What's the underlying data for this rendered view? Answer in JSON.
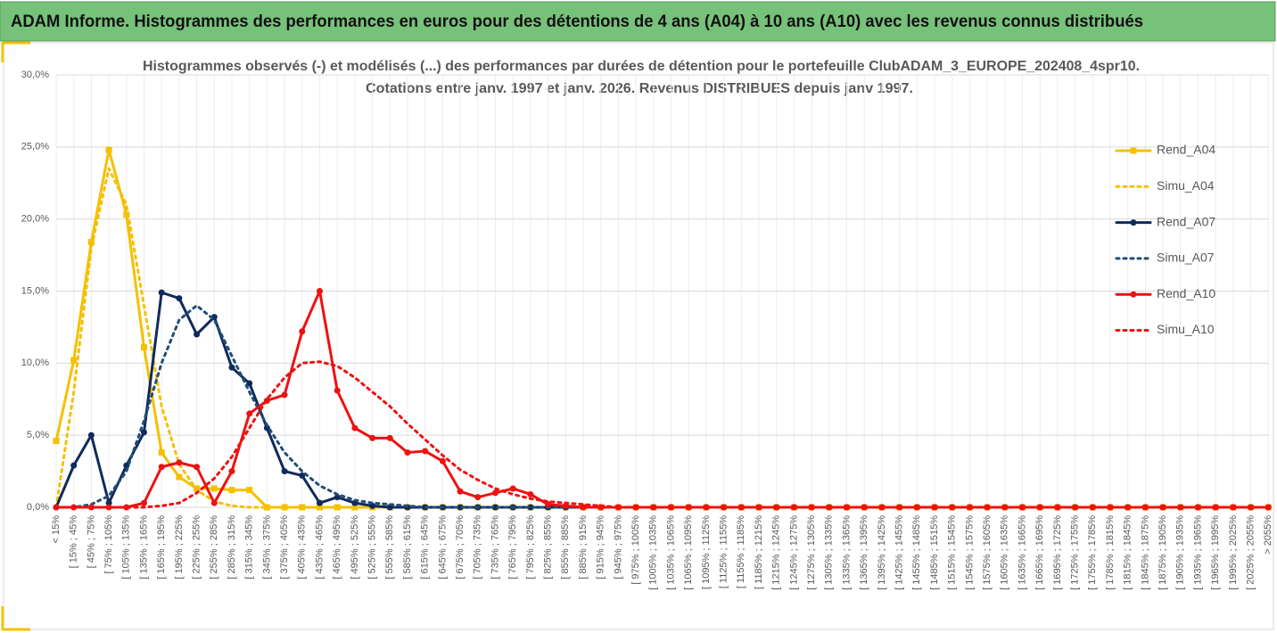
{
  "header": {
    "title": "ADAM Informe. Histogrammes des performances en euros pour des détentions de 4 ans (A04) à 10 ans (A10) avec les revenus connus distribués"
  },
  "chart_data": {
    "type": "line",
    "title": "Histogrammes observés (-) et modélisés (...) des performances par durées de détention pour le portefeuille ClubADAM_3_EUROPE_202408_4spr10.",
    "subtitle": "Cotations entre janv. 1997 et janv. 2026. Revenus DISTRIBUES depuis janv 1997.",
    "categories": [
      "< 15%",
      "[ 15% ; 45%",
      "[ 45% ; 75%",
      "[ 75% ; 105%",
      "[ 105% ; 135%",
      "[ 135% ; 165%",
      "[ 165% ; 195%",
      "[ 195% ; 225%",
      "[ 225% ; 255%",
      "[ 255% ; 285%",
      "[ 285% ; 315%",
      "[ 315% ; 345%",
      "[ 345% ; 375%",
      "[ 375% ; 405%",
      "[ 405% ; 435%",
      "[ 435% ; 465%",
      "[ 465% ; 495%",
      "[ 495% ; 525%",
      "[ 525% ; 555%",
      "[ 555% ; 585%",
      "[ 585% ; 615%",
      "[ 615% ; 645%",
      "[ 645% ; 675%",
      "[ 675% ; 705%",
      "[ 705% ; 735%",
      "[ 735% ; 765%",
      "[ 765% ; 795%",
      "[ 795% ; 825%",
      "[ 825% ; 855%",
      "[ 855% ; 885%",
      "[ 885% ; 915%",
      "[ 915% ; 945%",
      "[ 945% ; 975%",
      "[ 975% ; 1005%",
      "[ 1005% ; 1035%",
      "[ 1035% ; 1065%",
      "[ 1065% ; 1095%",
      "[ 1095% ; 1125%",
      "[ 1125% ; 1155%",
      "[ 1155% ; 1185%",
      "[ 1185% ; 1215%",
      "[ 1215% ; 1245%",
      "[ 1245% ; 1275%",
      "[ 1275% ; 1305%",
      "[ 1305% ; 1335%",
      "[ 1335% ; 1365%",
      "[ 1365% ; 1395%",
      "[ 1395% ; 1425%",
      "[ 1425% ; 1455%",
      "[ 1455% ; 1485%",
      "[ 1485% ; 1515%",
      "[ 1515% ; 1545%",
      "[ 1545% ; 1575%",
      "[ 1575% ; 1605%",
      "[ 1605% ; 1635%",
      "[ 1635% ; 1665%",
      "[ 1665% ; 1695%",
      "[ 1695% ; 1725%",
      "[ 1725% ; 1755%",
      "[ 1755% ; 1785%",
      "[ 1785% ; 1815%",
      "[ 1815% ; 1845%",
      "[ 1845% ; 1875%",
      "[ 1875% ; 1905%",
      "[ 1905% ; 1935%",
      "[ 1935% ; 1965%",
      "[ 1965% ; 1995%",
      "[ 1995% ; 2025%",
      "[ 2025% ; 2055%",
      "> 2055%"
    ],
    "series": [
      {
        "name": "Rend_A04",
        "color": "#f5c000",
        "style": "solid",
        "marker": "square",
        "values": [
          4.6,
          10.2,
          18.4,
          24.8,
          20.3,
          11.1,
          3.8,
          2.1,
          1.3,
          1.3,
          1.2,
          1.2,
          0,
          0,
          0,
          0,
          0,
          0,
          0,
          0,
          0,
          0,
          0,
          0,
          0,
          0,
          0,
          0,
          0,
          0,
          0,
          0,
          0,
          0,
          0,
          0,
          0,
          0,
          0,
          0,
          0,
          0,
          0,
          0,
          0,
          0,
          0,
          0,
          0,
          0,
          0,
          0,
          0,
          0,
          0,
          0,
          0,
          0,
          0,
          0,
          0,
          0,
          0,
          0,
          0,
          0,
          0,
          0,
          0,
          0
        ]
      },
      {
        "name": "Simu_A04",
        "color": "#f5c000",
        "style": "dotted",
        "values": [
          0,
          8,
          18,
          23.5,
          21,
          14,
          7,
          3,
          1.2,
          0.4,
          0.1,
          0,
          0,
          0,
          0,
          0,
          0,
          0,
          0,
          0,
          0,
          0,
          0,
          0,
          0,
          0,
          0,
          0,
          0,
          0,
          0,
          0,
          0,
          0,
          0,
          0,
          0,
          0,
          0,
          0,
          0,
          0,
          0,
          0,
          0,
          0,
          0,
          0,
          0,
          0,
          0,
          0,
          0,
          0,
          0,
          0,
          0,
          0,
          0,
          0,
          0,
          0,
          0,
          0,
          0,
          0,
          0,
          0,
          0,
          0
        ]
      },
      {
        "name": "Rend_A07",
        "color": "#0f2a5c",
        "style": "solid",
        "marker": "circle",
        "values": [
          0,
          2.9,
          5.0,
          0.3,
          2.9,
          5.2,
          14.9,
          14.5,
          12.0,
          13.2,
          9.7,
          8.6,
          5.5,
          2.5,
          2.2,
          0.3,
          0.7,
          0.3,
          0.1,
          0,
          0,
          0,
          0,
          0,
          0,
          0,
          0,
          0,
          0,
          0,
          0,
          0,
          0,
          0,
          0,
          0,
          0,
          0,
          0,
          0,
          0,
          0,
          0,
          0,
          0,
          0,
          0,
          0,
          0,
          0,
          0,
          0,
          0,
          0,
          0,
          0,
          0,
          0,
          0,
          0,
          0,
          0,
          0,
          0,
          0,
          0,
          0,
          0,
          0,
          0
        ]
      },
      {
        "name": "Simu_A07",
        "color": "#1f4e79",
        "style": "dotted",
        "values": [
          0,
          0,
          0.2,
          0.8,
          2.5,
          6.0,
          10.0,
          13.0,
          14.0,
          13.0,
          10.5,
          8.0,
          5.7,
          3.8,
          2.5,
          1.5,
          0.9,
          0.5,
          0.3,
          0.2,
          0.1,
          0,
          0,
          0,
          0,
          0,
          0,
          0,
          0,
          0,
          0,
          0,
          0,
          0,
          0,
          0,
          0,
          0,
          0,
          0,
          0,
          0,
          0,
          0,
          0,
          0,
          0,
          0,
          0,
          0,
          0,
          0,
          0,
          0,
          0,
          0,
          0,
          0,
          0,
          0,
          0,
          0,
          0,
          0,
          0,
          0,
          0,
          0,
          0,
          0
        ]
      },
      {
        "name": "Rend_A10",
        "color": "#ee1111",
        "style": "solid",
        "marker": "circle",
        "values": [
          0,
          0,
          0,
          0,
          0,
          0.3,
          2.8,
          3.1,
          2.8,
          0.3,
          2.5,
          6.5,
          7.4,
          7.8,
          12.2,
          15.0,
          8.1,
          5.5,
          4.8,
          4.8,
          3.8,
          3.9,
          3.2,
          1.1,
          0.7,
          1.0,
          1.3,
          0.9,
          0.2,
          0.1,
          0,
          0,
          0,
          0,
          0,
          0,
          0,
          0,
          0,
          0,
          0,
          0,
          0,
          0,
          0,
          0,
          0,
          0,
          0,
          0,
          0,
          0,
          0,
          0,
          0,
          0,
          0,
          0,
          0,
          0,
          0,
          0,
          0,
          0,
          0,
          0,
          0,
          0,
          0,
          0
        ]
      },
      {
        "name": "Simu_A10",
        "color": "#ee1111",
        "style": "dotted",
        "values": [
          0,
          0,
          0,
          0,
          0,
          0,
          0.1,
          0.3,
          1,
          2,
          3.5,
          5.5,
          7.5,
          9,
          10,
          10.1,
          9.8,
          9,
          8,
          7,
          5.8,
          4.7,
          3.6,
          2.6,
          1.9,
          1.3,
          0.9,
          0.6,
          0.4,
          0.3,
          0.2,
          0.1,
          0,
          0,
          0,
          0,
          0,
          0,
          0,
          0,
          0,
          0,
          0,
          0,
          0,
          0,
          0,
          0,
          0,
          0,
          0,
          0,
          0,
          0,
          0,
          0,
          0,
          0,
          0,
          0,
          0,
          0,
          0,
          0,
          0,
          0,
          0,
          0,
          0,
          0
        ]
      }
    ],
    "ylim": [
      0,
      30
    ],
    "yticks": [
      {
        "value": 0,
        "label": "0,0%"
      },
      {
        "value": 5,
        "label": "5,0%"
      },
      {
        "value": 10,
        "label": "10,0%"
      },
      {
        "value": 15,
        "label": "15,0%"
      },
      {
        "value": 20,
        "label": "20,0%"
      },
      {
        "value": 25,
        "label": "25,0%"
      },
      {
        "value": 30,
        "label": "30,0%"
      }
    ],
    "grid": true,
    "legend": "right"
  }
}
